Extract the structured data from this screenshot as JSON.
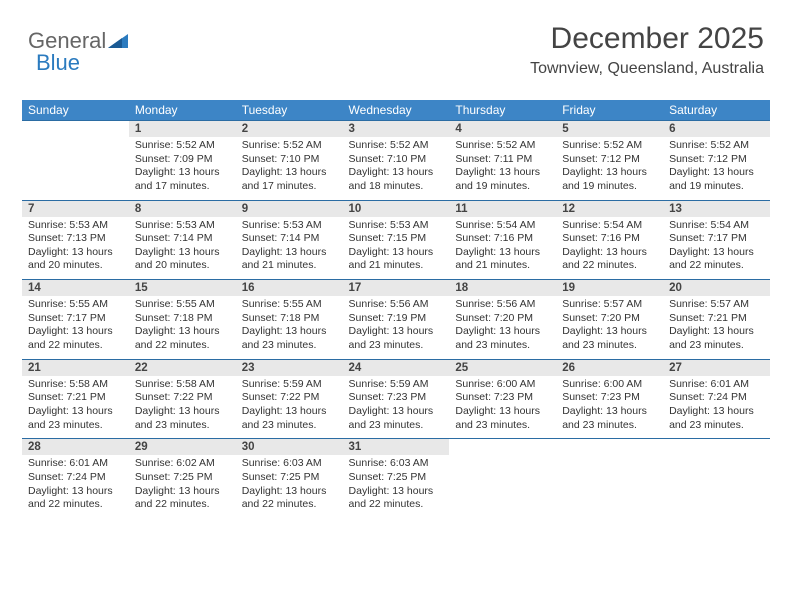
{
  "logo": {
    "text1": "General",
    "text2": "Blue"
  },
  "header": {
    "month": "December 2025",
    "location": "Townview, Queensland, Australia"
  },
  "colors": {
    "header_bg": "#3d85c6",
    "header_text": "#ffffff",
    "daynum_bg": "#e8e8e8",
    "border": "#2b6ca3",
    "logo_blue": "#2b7bbf"
  },
  "weekdays": [
    "Sunday",
    "Monday",
    "Tuesday",
    "Wednesday",
    "Thursday",
    "Friday",
    "Saturday"
  ],
  "weeks": [
    [
      null,
      {
        "n": "1",
        "sr": "5:52 AM",
        "ss": "7:09 PM",
        "dl": "13 hours and 17 minutes."
      },
      {
        "n": "2",
        "sr": "5:52 AM",
        "ss": "7:10 PM",
        "dl": "13 hours and 17 minutes."
      },
      {
        "n": "3",
        "sr": "5:52 AM",
        "ss": "7:10 PM",
        "dl": "13 hours and 18 minutes."
      },
      {
        "n": "4",
        "sr": "5:52 AM",
        "ss": "7:11 PM",
        "dl": "13 hours and 19 minutes."
      },
      {
        "n": "5",
        "sr": "5:52 AM",
        "ss": "7:12 PM",
        "dl": "13 hours and 19 minutes."
      },
      {
        "n": "6",
        "sr": "5:52 AM",
        "ss": "7:12 PM",
        "dl": "13 hours and 19 minutes."
      }
    ],
    [
      {
        "n": "7",
        "sr": "5:53 AM",
        "ss": "7:13 PM",
        "dl": "13 hours and 20 minutes."
      },
      {
        "n": "8",
        "sr": "5:53 AM",
        "ss": "7:14 PM",
        "dl": "13 hours and 20 minutes."
      },
      {
        "n": "9",
        "sr": "5:53 AM",
        "ss": "7:14 PM",
        "dl": "13 hours and 21 minutes."
      },
      {
        "n": "10",
        "sr": "5:53 AM",
        "ss": "7:15 PM",
        "dl": "13 hours and 21 minutes."
      },
      {
        "n": "11",
        "sr": "5:54 AM",
        "ss": "7:16 PM",
        "dl": "13 hours and 21 minutes."
      },
      {
        "n": "12",
        "sr": "5:54 AM",
        "ss": "7:16 PM",
        "dl": "13 hours and 22 minutes."
      },
      {
        "n": "13",
        "sr": "5:54 AM",
        "ss": "7:17 PM",
        "dl": "13 hours and 22 minutes."
      }
    ],
    [
      {
        "n": "14",
        "sr": "5:55 AM",
        "ss": "7:17 PM",
        "dl": "13 hours and 22 minutes."
      },
      {
        "n": "15",
        "sr": "5:55 AM",
        "ss": "7:18 PM",
        "dl": "13 hours and 22 minutes."
      },
      {
        "n": "16",
        "sr": "5:55 AM",
        "ss": "7:18 PM",
        "dl": "13 hours and 23 minutes."
      },
      {
        "n": "17",
        "sr": "5:56 AM",
        "ss": "7:19 PM",
        "dl": "13 hours and 23 minutes."
      },
      {
        "n": "18",
        "sr": "5:56 AM",
        "ss": "7:20 PM",
        "dl": "13 hours and 23 minutes."
      },
      {
        "n": "19",
        "sr": "5:57 AM",
        "ss": "7:20 PM",
        "dl": "13 hours and 23 minutes."
      },
      {
        "n": "20",
        "sr": "5:57 AM",
        "ss": "7:21 PM",
        "dl": "13 hours and 23 minutes."
      }
    ],
    [
      {
        "n": "21",
        "sr": "5:58 AM",
        "ss": "7:21 PM",
        "dl": "13 hours and 23 minutes."
      },
      {
        "n": "22",
        "sr": "5:58 AM",
        "ss": "7:22 PM",
        "dl": "13 hours and 23 minutes."
      },
      {
        "n": "23",
        "sr": "5:59 AM",
        "ss": "7:22 PM",
        "dl": "13 hours and 23 minutes."
      },
      {
        "n": "24",
        "sr": "5:59 AM",
        "ss": "7:23 PM",
        "dl": "13 hours and 23 minutes."
      },
      {
        "n": "25",
        "sr": "6:00 AM",
        "ss": "7:23 PM",
        "dl": "13 hours and 23 minutes."
      },
      {
        "n": "26",
        "sr": "6:00 AM",
        "ss": "7:23 PM",
        "dl": "13 hours and 23 minutes."
      },
      {
        "n": "27",
        "sr": "6:01 AM",
        "ss": "7:24 PM",
        "dl": "13 hours and 23 minutes."
      }
    ],
    [
      {
        "n": "28",
        "sr": "6:01 AM",
        "ss": "7:24 PM",
        "dl": "13 hours and 22 minutes."
      },
      {
        "n": "29",
        "sr": "6:02 AM",
        "ss": "7:25 PM",
        "dl": "13 hours and 22 minutes."
      },
      {
        "n": "30",
        "sr": "6:03 AM",
        "ss": "7:25 PM",
        "dl": "13 hours and 22 minutes."
      },
      {
        "n": "31",
        "sr": "6:03 AM",
        "ss": "7:25 PM",
        "dl": "13 hours and 22 minutes."
      },
      null,
      null,
      null
    ]
  ],
  "labels": {
    "sunrise": "Sunrise:",
    "sunset": "Sunset:",
    "daylight": "Daylight:"
  }
}
